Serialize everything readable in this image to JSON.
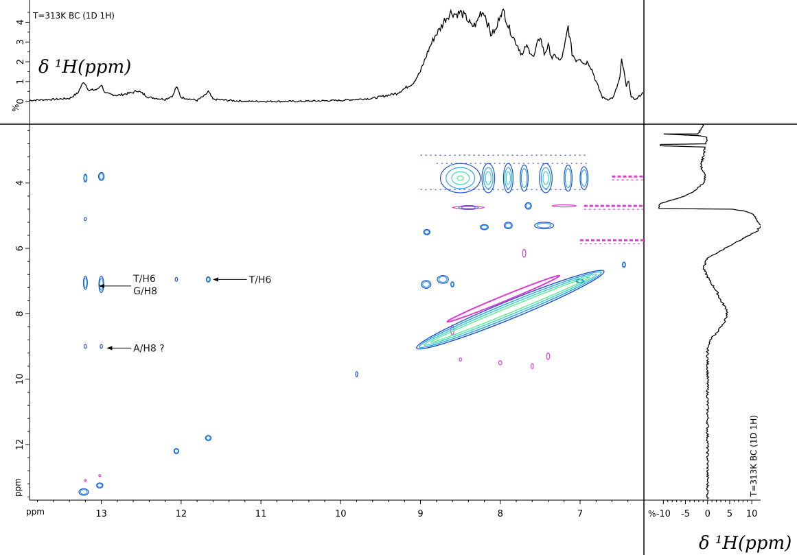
{
  "chart_data": {
    "type": "heatmap",
    "subtype": "2D NMR contour plot (homonuclear 1H-1H) with 1D projections",
    "x_axis": {
      "unit_label": "ppm",
      "range": [
        13.9,
        6.2
      ],
      "ticks": [
        13,
        12,
        11,
        10,
        9,
        8,
        7
      ],
      "reversed": true
    },
    "y_axis": {
      "unit_label": "ppm",
      "range": [
        2.2,
        13.7
      ],
      "ticks": [
        4,
        6,
        8,
        10,
        12
      ],
      "reversed": true
    },
    "top_projection": {
      "label": "T=313K BC (1D 1H)",
      "axis_title": "δ ¹H(ppm)",
      "y_unit_label": "%",
      "y_ticks": [
        0,
        1,
        2,
        3,
        4
      ],
      "y_range": [
        -0.6,
        4.5
      ],
      "points": [
        [
          13.9,
          0.05
        ],
        [
          13.6,
          0.1
        ],
        [
          13.4,
          0.15
        ],
        [
          13.3,
          0.4
        ],
        [
          13.22,
          1.0
        ],
        [
          13.15,
          0.55
        ],
        [
          13.05,
          0.6
        ],
        [
          13.0,
          0.85
        ],
        [
          12.95,
          0.4
        ],
        [
          12.8,
          0.3
        ],
        [
          12.6,
          0.45
        ],
        [
          12.55,
          0.55
        ],
        [
          12.4,
          0.2
        ],
        [
          12.2,
          0.1
        ],
        [
          12.1,
          0.3
        ],
        [
          12.06,
          0.75
        ],
        [
          12.0,
          0.2
        ],
        [
          11.8,
          0.05
        ],
        [
          11.7,
          0.3
        ],
        [
          11.66,
          0.5
        ],
        [
          11.6,
          0.1
        ],
        [
          11.2,
          0.0
        ],
        [
          10.5,
          0.0
        ],
        [
          10.0,
          0.05
        ],
        [
          9.6,
          0.15
        ],
        [
          9.3,
          0.4
        ],
        [
          9.1,
          0.9
        ],
        [
          9.0,
          1.5
        ],
        [
          8.9,
          2.6
        ],
        [
          8.82,
          3.3
        ],
        [
          8.75,
          3.7
        ],
        [
          8.7,
          4.1
        ],
        [
          8.62,
          4.5
        ],
        [
          8.55,
          4.4
        ],
        [
          8.5,
          4.5
        ],
        [
          8.42,
          4.2
        ],
        [
          8.36,
          3.8
        ],
        [
          8.3,
          3.9
        ],
        [
          8.25,
          4.5
        ],
        [
          8.2,
          4.5
        ],
        [
          8.12,
          3.4
        ],
        [
          8.05,
          3.6
        ],
        [
          8.0,
          4.5
        ],
        [
          7.95,
          4.5
        ],
        [
          7.9,
          3.8
        ],
        [
          7.82,
          3.1
        ],
        [
          7.78,
          2.8
        ],
        [
          7.72,
          2.3
        ],
        [
          7.68,
          2.8
        ],
        [
          7.62,
          2.5
        ],
        [
          7.58,
          2.2
        ],
        [
          7.55,
          2.7
        ],
        [
          7.5,
          3.3
        ],
        [
          7.45,
          2.4
        ],
        [
          7.4,
          2.8
        ],
        [
          7.35,
          2.2
        ],
        [
          7.3,
          2.3
        ],
        [
          7.25,
          2.0
        ],
        [
          7.2,
          2.6
        ],
        [
          7.15,
          3.8
        ],
        [
          7.1,
          2.4
        ],
        [
          7.05,
          2.1
        ],
        [
          7.0,
          2.2
        ],
        [
          6.95,
          1.9
        ],
        [
          6.9,
          2.0
        ],
        [
          6.85,
          1.6
        ],
        [
          6.8,
          1.0
        ],
        [
          6.75,
          0.5
        ],
        [
          6.72,
          0.2
        ],
        [
          6.65,
          0.1
        ],
        [
          6.58,
          0.2
        ],
        [
          6.5,
          1.2
        ],
        [
          6.48,
          2.1
        ],
        [
          6.45,
          1.5
        ],
        [
          6.42,
          0.7
        ],
        [
          6.39,
          1.1
        ],
        [
          6.36,
          0.2
        ],
        [
          6.3,
          0.1
        ],
        [
          6.22,
          0.4
        ],
        [
          6.2,
          0.5
        ]
      ]
    },
    "right_projection": {
      "label": "T=313K BC (1D 1H)",
      "axis_title": "δ ¹H(ppm)",
      "x_unit_label": "%",
      "x_ticks": [
        -10,
        -5,
        0,
        5,
        10
      ],
      "x_range": [
        -13,
        12
      ],
      "points": [
        [
          2.2,
          -1.0
        ],
        [
          2.5,
          -2.0
        ],
        [
          2.5,
          -10.0
        ],
        [
          2.55,
          -2.0
        ],
        [
          2.6,
          0.0
        ],
        [
          2.8,
          -0.5
        ],
        [
          2.82,
          -10.5
        ],
        [
          2.86,
          -10.5
        ],
        [
          2.9,
          -0.5
        ],
        [
          3.2,
          -1.0
        ],
        [
          3.5,
          -1.5
        ],
        [
          3.8,
          -0.5
        ],
        [
          4.0,
          -1.0
        ],
        [
          4.2,
          -2.5
        ],
        [
          4.4,
          -5.0
        ],
        [
          4.55,
          -9.0
        ],
        [
          4.65,
          -11.0
        ],
        [
          4.72,
          -11.0
        ],
        [
          4.78,
          -11.0
        ],
        [
          4.8,
          5.5
        ],
        [
          4.85,
          8.0
        ],
        [
          4.9,
          9.5
        ],
        [
          5.0,
          10.5
        ],
        [
          5.3,
          12.0
        ],
        [
          5.5,
          11.0
        ],
        [
          5.7,
          8.0
        ],
        [
          6.0,
          4.0
        ],
        [
          6.3,
          0.0
        ],
        [
          6.6,
          -1.0
        ],
        [
          7.0,
          0.5
        ],
        [
          7.3,
          2.0
        ],
        [
          7.6,
          3.0
        ],
        [
          7.9,
          4.5
        ],
        [
          8.2,
          4.0
        ],
        [
          8.4,
          3.0
        ],
        [
          8.6,
          2.0
        ],
        [
          8.8,
          0.5
        ],
        [
          9.0,
          0.0
        ],
        [
          10.0,
          0.0
        ],
        [
          11.0,
          0.0
        ],
        [
          12.0,
          0.0
        ],
        [
          13.0,
          0.0
        ],
        [
          13.7,
          0.0
        ]
      ]
    },
    "contour_peaks": [
      {
        "x": 13.2,
        "y": 3.85,
        "sx": 0.02,
        "sy": 0.12,
        "color": "blue"
      },
      {
        "x": 13.0,
        "y": 3.8,
        "sx": 0.035,
        "sy": 0.12,
        "color": "blue"
      },
      {
        "x": 13.2,
        "y": 5.1,
        "sx": 0.01,
        "sy": 0.05,
        "color": "blue"
      },
      {
        "x": 13.2,
        "y": 7.05,
        "sx": 0.025,
        "sy": 0.2,
        "color": "blue"
      },
      {
        "x": 13.0,
        "y": 7.1,
        "sx": 0.03,
        "sy": 0.25,
        "color": "blue"
      },
      {
        "x": 12.06,
        "y": 6.95,
        "sx": 0.015,
        "sy": 0.06,
        "color": "blue"
      },
      {
        "x": 11.66,
        "y": 6.95,
        "sx": 0.025,
        "sy": 0.08,
        "color": "blue"
      },
      {
        "x": 13.2,
        "y": 9.0,
        "sx": 0.015,
        "sy": 0.06,
        "color": "blue"
      },
      {
        "x": 13.0,
        "y": 9.0,
        "sx": 0.015,
        "sy": 0.06,
        "color": "blue"
      },
      {
        "x": 9.8,
        "y": 9.85,
        "sx": 0.01,
        "sy": 0.08,
        "color": "blue"
      },
      {
        "x": 12.06,
        "y": 12.2,
        "sx": 0.03,
        "sy": 0.08,
        "color": "blue"
      },
      {
        "x": 11.66,
        "y": 11.8,
        "sx": 0.035,
        "sy": 0.08,
        "color": "blue"
      },
      {
        "x": 13.22,
        "y": 13.45,
        "sx": 0.06,
        "sy": 0.1,
        "color": "blue"
      },
      {
        "x": 13.02,
        "y": 13.25,
        "sx": 0.04,
        "sy": 0.08,
        "color": "blue"
      },
      {
        "x": 8.92,
        "y": 5.5,
        "sx": 0.04,
        "sy": 0.08,
        "color": "blue"
      },
      {
        "x": 8.93,
        "y": 7.1,
        "sx": 0.06,
        "sy": 0.12,
        "color": "blue"
      },
      {
        "x": 8.72,
        "y": 6.95,
        "sx": 0.07,
        "sy": 0.12,
        "color": "blue"
      },
      {
        "x": 8.6,
        "y": 7.1,
        "sx": 0.02,
        "sy": 0.08,
        "color": "blue"
      },
      {
        "x": 8.5,
        "y": 3.85,
        "sx": 0.25,
        "sy": 0.45,
        "color": "blue"
      },
      {
        "x": 8.15,
        "y": 3.85,
        "sx": 0.08,
        "sy": 0.45,
        "color": "blue"
      },
      {
        "x": 7.9,
        "y": 3.85,
        "sx": 0.06,
        "sy": 0.45,
        "color": "blue"
      },
      {
        "x": 7.7,
        "y": 3.85,
        "sx": 0.05,
        "sy": 0.4,
        "color": "blue"
      },
      {
        "x": 7.43,
        "y": 3.85,
        "sx": 0.08,
        "sy": 0.45,
        "color": "blue"
      },
      {
        "x": 7.15,
        "y": 3.85,
        "sx": 0.05,
        "sy": 0.4,
        "color": "blue"
      },
      {
        "x": 6.95,
        "y": 3.85,
        "sx": 0.05,
        "sy": 0.35,
        "color": "blue"
      },
      {
        "x": 7.65,
        "y": 4.7,
        "sx": 0.04,
        "sy": 0.1,
        "color": "blue"
      },
      {
        "x": 8.4,
        "y": 4.75,
        "sx": 0.12,
        "sy": 0.06,
        "color": "blue"
      },
      {
        "x": 7.45,
        "y": 5.3,
        "sx": 0.12,
        "sy": 0.1,
        "color": "blue"
      },
      {
        "x": 7.9,
        "y": 5.3,
        "sx": 0.05,
        "sy": 0.1,
        "color": "blue"
      },
      {
        "x": 8.2,
        "y": 5.35,
        "sx": 0.05,
        "sy": 0.08,
        "color": "blue"
      },
      {
        "x": 6.45,
        "y": 6.5,
        "sx": 0.02,
        "sy": 0.08,
        "color": "blue"
      },
      {
        "x": 7.0,
        "y": 7.0,
        "sx": 0.05,
        "sy": 0.05,
        "color": "blue"
      },
      {
        "x": 8.6,
        "y": 8.5,
        "sx": 0.02,
        "sy": 0.15,
        "color": "magenta"
      },
      {
        "x": 8.0,
        "y": 9.5,
        "sx": 0.02,
        "sy": 0.06,
        "color": "magenta"
      },
      {
        "x": 7.6,
        "y": 9.6,
        "sx": 0.015,
        "sy": 0.08,
        "color": "magenta"
      },
      {
        "x": 7.4,
        "y": 9.3,
        "sx": 0.02,
        "sy": 0.1,
        "color": "magenta"
      },
      {
        "x": 8.5,
        "y": 9.4,
        "sx": 0.015,
        "sy": 0.05,
        "color": "magenta"
      },
      {
        "x": 7.2,
        "y": 4.7,
        "sx": 0.15,
        "sy": 0.02,
        "color": "magenta"
      },
      {
        "x": 8.4,
        "y": 4.75,
        "sx": 0.2,
        "sy": 0.02,
        "color": "magenta"
      },
      {
        "x": 7.7,
        "y": 6.15,
        "sx": 0.02,
        "sy": 0.12,
        "color": "magenta"
      },
      {
        "x": 13.2,
        "y": 13.1,
        "sx": 0.01,
        "sy": 0.03,
        "color": "magenta"
      },
      {
        "x": 13.02,
        "y": 12.95,
        "sx": 0.01,
        "sy": 0.03,
        "color": "magenta"
      }
    ],
    "magenta_bands": [
      {
        "y": 4.7,
        "x_from": 6.95,
        "x_to": 6.2
      },
      {
        "y": 5.75,
        "x_from": 7.0,
        "x_to": 6.2
      },
      {
        "y": 3.8,
        "x_from": 6.6,
        "x_to": 6.2
      }
    ],
    "diagonal_band": {
      "x_start": 9.05,
      "x_end": 6.7
    },
    "annotations": [
      {
        "lines": [
          "T/H6",
          "G/H8"
        ],
        "arrow_to": [
          13.05,
          7.15
        ],
        "text_at": [
          12.6,
          7.15
        ]
      },
      {
        "lines": [
          "T/H6"
        ],
        "arrow_to": [
          11.62,
          6.95
        ],
        "text_at": [
          11.15,
          6.95
        ]
      },
      {
        "lines": [
          "A/H8 ?"
        ],
        "arrow_to": [
          12.95,
          9.05
        ],
        "text_at": [
          12.6,
          9.05
        ]
      }
    ]
  }
}
